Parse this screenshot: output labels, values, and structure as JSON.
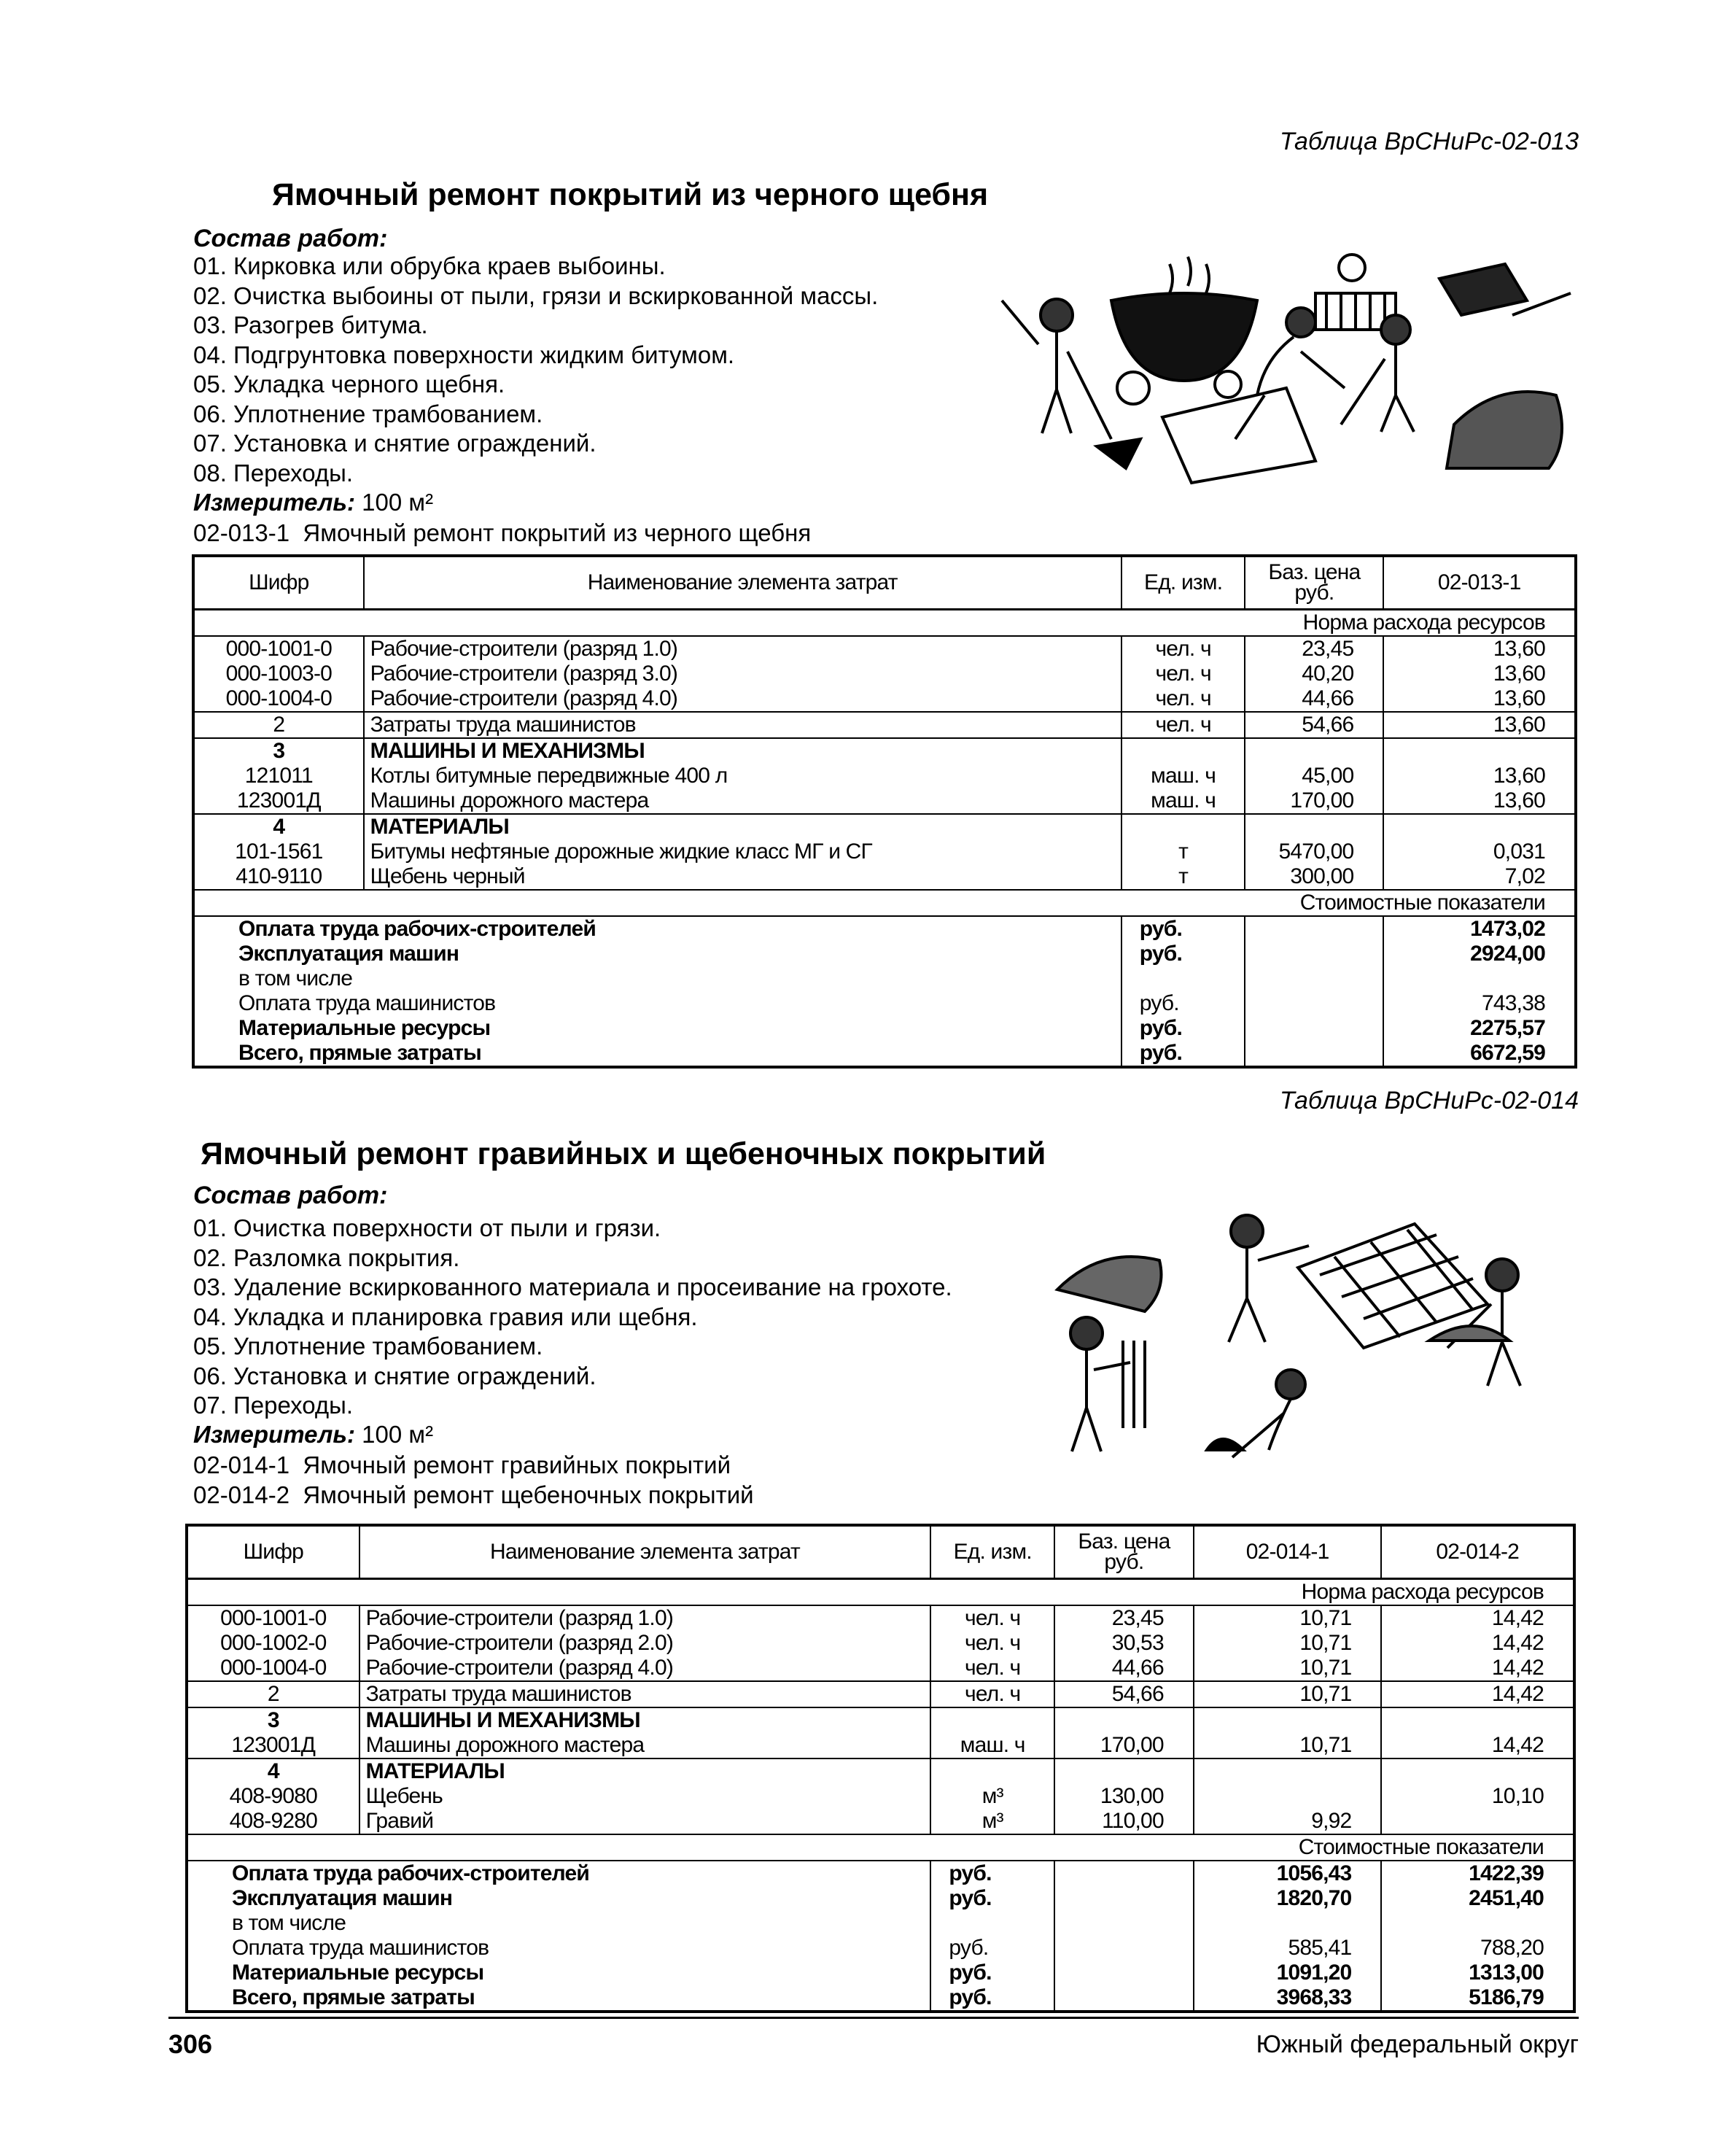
{
  "sections": [
    {
      "table_ref": "Таблица ВрСНиРс-02-013",
      "title": "Ямочный ремонт покрытий из черного щебня",
      "sostav_label": "Состав работ:",
      "steps": [
        "01. Кирковка или обрубка краев выбоины.",
        "02. Очистка выбоины от пыли, грязи и вскиркованной массы.",
        "03. Разогрев битума.",
        "04. Подгрунтовка поверхности жидким битумом.",
        "05. Укладка черного щебня.",
        "06. Уплотнение трамбованием.",
        "07. Установка и снятие ограждений.",
        "08. Переходы."
      ],
      "measure_label": "Измеритель:",
      "measure_value": "100 м²",
      "codes": [
        "02-013-1  Ямочный ремонт покрытий из черного щебня"
      ],
      "illustration": "workers-patching-road-with-bitumen-boiler",
      "table": {
        "headers": [
          "Шифр",
          "Наименование элемента затрат",
          "Ед. изм.",
          "Баз. цена руб.",
          "02-013-1"
        ],
        "norm_label": "Норма расхода ресурсов",
        "groups": [
          {
            "rows": [
              {
                "code": "000-1001-0",
                "name": "Рабочие-строители (разряд 1.0)",
                "unit": "чел. ч",
                "price": "23,45",
                "vals": [
                  "13,60"
                ]
              },
              {
                "code": "000-1003-0",
                "name": "Рабочие-строители (разряд 3.0)",
                "unit": "чел. ч",
                "price": "40,20",
                "vals": [
                  "13,60"
                ]
              },
              {
                "code": "000-1004-0",
                "name": "Рабочие-строители (разряд 4.0)",
                "unit": "чел. ч",
                "price": "44,66",
                "vals": [
                  "13,60"
                ]
              }
            ]
          },
          {
            "rows": [
              {
                "code": "2",
                "name": "Затраты труда машинистов",
                "unit": "чел. ч",
                "price": "54,66",
                "vals": [
                  "13,60"
                ]
              }
            ]
          },
          {
            "rows": [
              {
                "code": "3",
                "name": "МАШИНЫ И МЕХАНИЗМЫ",
                "unit": "",
                "price": "",
                "vals": [
                  ""
                ],
                "bold": true
              },
              {
                "code": "121011",
                "name": "Котлы битумные передвижные 400 л",
                "unit": "маш. ч",
                "price": "45,00",
                "vals": [
                  "13,60"
                ]
              },
              {
                "code": "123001Д",
                "name": "Машины дорожного мастера",
                "unit": "маш. ч",
                "price": "170,00",
                "vals": [
                  "13,60"
                ]
              }
            ]
          },
          {
            "rows": [
              {
                "code": "4",
                "name": "МАТЕРИАЛЫ",
                "unit": "",
                "price": "",
                "vals": [
                  ""
                ],
                "bold": true
              },
              {
                "code": "101-1561",
                "name": "Битумы нефтяные дорожные жидкие класс МГ и СГ",
                "unit": "т",
                "price": "5470,00",
                "vals": [
                  "0,031"
                ]
              },
              {
                "code": "410-9110",
                "name": "Щебень черный",
                "unit": "т",
                "price": "300,00",
                "vals": [
                  "7,02"
                ]
              }
            ]
          }
        ],
        "cost_label": "Стоимостные показатели",
        "costs": [
          {
            "name": "Оплата труда рабочих-строителей",
            "unit": "руб.",
            "vals": [
              "1473,02"
            ],
            "bold": true
          },
          {
            "name": "Эксплуатация машин",
            "unit": "руб.",
            "vals": [
              "2924,00"
            ],
            "bold": true
          },
          {
            "name": "в том числе",
            "unit": "",
            "vals": [
              ""
            ]
          },
          {
            "name": "Оплата труда машинистов",
            "unit": "руб.",
            "vals": [
              "743,38"
            ]
          },
          {
            "name": "Материальные ресурсы",
            "unit": "руб.",
            "vals": [
              "2275,57"
            ],
            "bold": true
          },
          {
            "name": "Всего, прямые затраты",
            "unit": "руб.",
            "vals": [
              "6672,59"
            ],
            "bold": true
          }
        ]
      }
    },
    {
      "table_ref": "Таблица ВрСНиРс-02-014",
      "title": "Ямочный ремонт гравийных и щебеночных покрытий",
      "sostav_label": "Состав работ:",
      "steps": [
        "01. Очистка поверхности от пыли и грязи.",
        "02. Разломка покрытия.",
        "03. Удаление вскиркованного материала и просеивание на грохоте.",
        "04. Укладка и планировка гравия или щебня.",
        "05. Уплотнение трамбованием.",
        "06. Установка и снятие ограждений.",
        "07. Переходы."
      ],
      "measure_label": "Измеритель:",
      "measure_value": "100 м²",
      "codes": [
        "02-014-1  Ямочный ремонт гравийных покрытий",
        "02-014-2  Ямочный ремонт щебеночных покрытий"
      ],
      "illustration": "workers-sifting-gravel-on-screen",
      "table": {
        "headers": [
          "Шифр",
          "Наименование элемента затрат",
          "Ед. изм.",
          "Баз. цена руб.",
          "02-014-1",
          "02-014-2"
        ],
        "norm_label": "Норма расхода ресурсов",
        "groups": [
          {
            "rows": [
              {
                "code": "000-1001-0",
                "name": "Рабочие-строители (разряд 1.0)",
                "unit": "чел. ч",
                "price": "23,45",
                "vals": [
                  "10,71",
                  "14,42"
                ]
              },
              {
                "code": "000-1002-0",
                "name": "Рабочие-строители (разряд 2.0)",
                "unit": "чел. ч",
                "price": "30,53",
                "vals": [
                  "10,71",
                  "14,42"
                ]
              },
              {
                "code": "000-1004-0",
                "name": "Рабочие-строители (разряд 4.0)",
                "unit": "чел. ч",
                "price": "44,66",
                "vals": [
                  "10,71",
                  "14,42"
                ]
              }
            ]
          },
          {
            "rows": [
              {
                "code": "2",
                "name": "Затраты труда машинистов",
                "unit": "чел. ч",
                "price": "54,66",
                "vals": [
                  "10,71",
                  "14,42"
                ]
              }
            ]
          },
          {
            "rows": [
              {
                "code": "3",
                "name": "МАШИНЫ И МЕХАНИЗМЫ",
                "unit": "",
                "price": "",
                "vals": [
                  "",
                  ""
                ],
                "bold": true
              },
              {
                "code": "123001Д",
                "name": "Машины дорожного мастера",
                "unit": "маш. ч",
                "price": "170,00",
                "vals": [
                  "10,71",
                  "14,42"
                ]
              }
            ]
          },
          {
            "rows": [
              {
                "code": "4",
                "name": "МАТЕРИАЛЫ",
                "unit": "",
                "price": "",
                "vals": [
                  "",
                  ""
                ],
                "bold": true
              },
              {
                "code": "408-9080",
                "name": "Щебень",
                "unit": "м³",
                "price": "130,00",
                "vals": [
                  "",
                  "10,10"
                ]
              },
              {
                "code": "408-9280",
                "name": "Гравий",
                "unit": "м³",
                "price": "110,00",
                "vals": [
                  "9,92",
                  ""
                ]
              }
            ]
          }
        ],
        "cost_label": "Стоимостные показатели",
        "costs": [
          {
            "name": "Оплата труда рабочих-строителей",
            "unit": "руб.",
            "vals": [
              "1056,43",
              "1422,39"
            ],
            "bold": true
          },
          {
            "name": "Эксплуатация машин",
            "unit": "руб.",
            "vals": [
              "1820,70",
              "2451,40"
            ],
            "bold": true
          },
          {
            "name": "в том числе",
            "unit": "",
            "vals": [
              "",
              ""
            ]
          },
          {
            "name": "Оплата труда машинистов",
            "unit": "руб.",
            "vals": [
              "585,41",
              "788,20"
            ]
          },
          {
            "name": "Материальные ресурсы",
            "unit": "руб.",
            "vals": [
              "1091,20",
              "1313,00"
            ],
            "bold": true
          },
          {
            "name": "Всего, прямые затраты",
            "unit": "руб.",
            "vals": [
              "3968,33",
              "5186,79"
            ],
            "bold": true
          }
        ]
      }
    }
  ],
  "footer": {
    "page_number": "306",
    "region": "Южный федеральный округ"
  }
}
